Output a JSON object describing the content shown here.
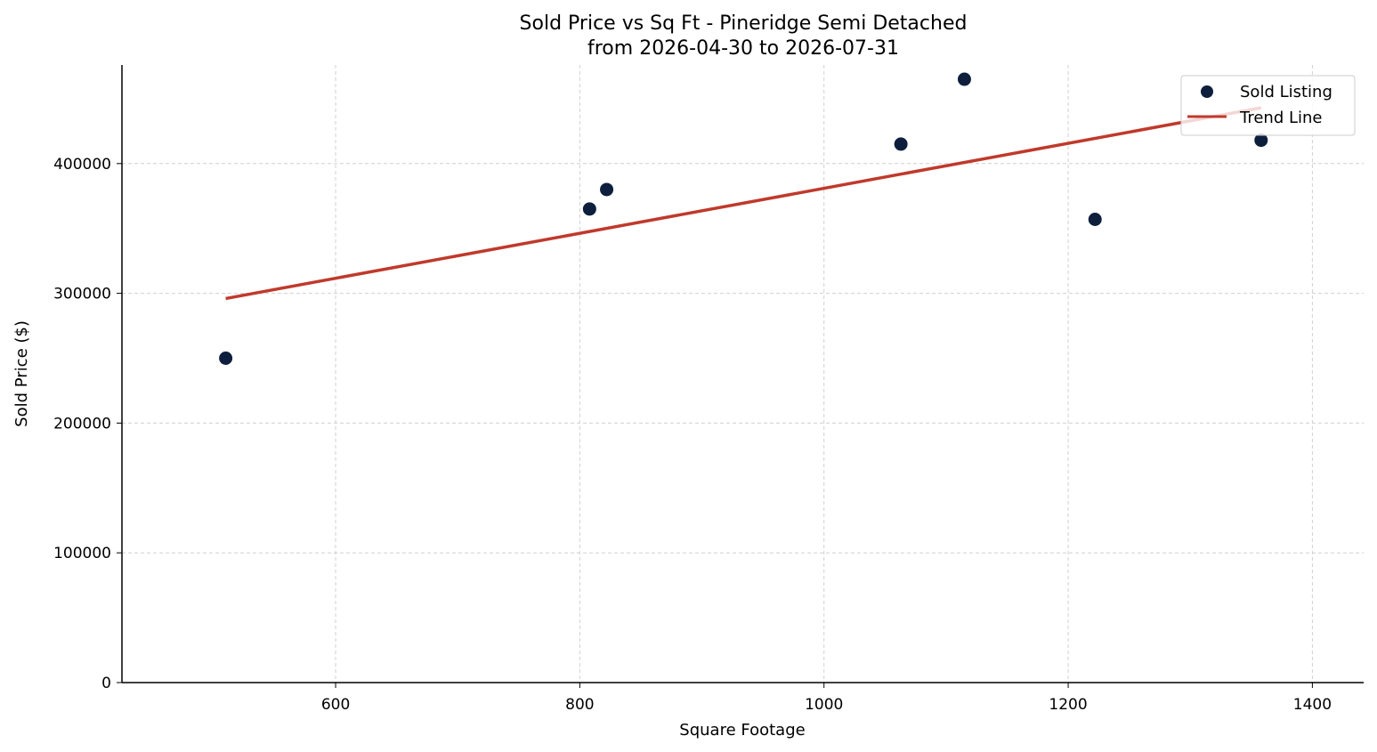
{
  "chart_data": {
    "type": "scatter",
    "title": "Sold Price vs Sq Ft - Pineridge Semi Detached",
    "subtitle": "from 2026-04-30 to 2026-07-31",
    "xlabel": "Square Footage",
    "ylabel": "Sold Price ($)",
    "xlim": [
      425,
      1442
    ],
    "ylim": [
      0,
      476000
    ],
    "x_ticks": [
      600,
      800,
      1000,
      1200,
      1400
    ],
    "y_ticks": [
      0,
      100000,
      200000,
      300000,
      400000
    ],
    "grid": true,
    "legend_position": "top-right",
    "series": [
      {
        "name": "Sold Listing",
        "kind": "scatter",
        "color": "#0d1f3c",
        "points": [
          {
            "x": 510,
            "y": 250000
          },
          {
            "x": 808,
            "y": 365000
          },
          {
            "x": 822,
            "y": 380000
          },
          {
            "x": 1063,
            "y": 415000
          },
          {
            "x": 1115,
            "y": 465000
          },
          {
            "x": 1222,
            "y": 357000
          },
          {
            "x": 1358,
            "y": 418000
          }
        ]
      },
      {
        "name": "Trend Line",
        "kind": "line",
        "color": "#c0392b",
        "points": [
          {
            "x": 510,
            "y": 296000
          },
          {
            "x": 1358,
            "y": 443000
          }
        ]
      }
    ]
  }
}
